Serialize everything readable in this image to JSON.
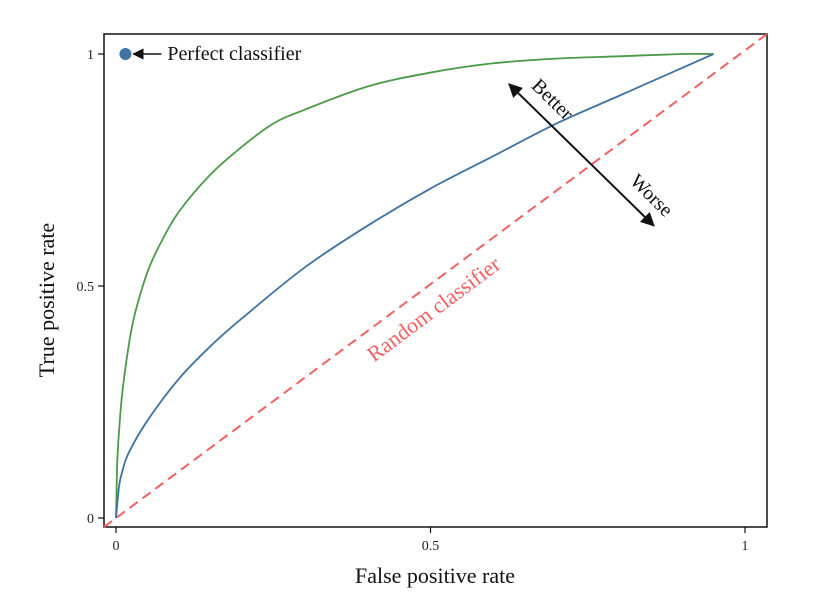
{
  "chart_data": {
    "type": "line",
    "xlabel": "False positive rate",
    "ylabel": "True positive rate",
    "xlim": [
      0,
      1
    ],
    "ylim": [
      0,
      1
    ],
    "x_ticks": [
      0,
      0.5,
      1
    ],
    "x_tick_labels": [
      "0",
      "0.5",
      "1"
    ],
    "y_ticks": [
      0,
      0.5,
      1
    ],
    "y_tick_labels": [
      "0",
      "0.5",
      "1"
    ],
    "grid": false,
    "series": [
      {
        "color": "#4a9a47",
        "x": [
          0,
          0.002,
          0.005,
          0.01,
          0.02,
          0.03,
          0.05,
          0.07,
          0.1,
          0.15,
          0.2,
          0.25,
          0.3,
          0.4,
          0.5,
          0.6,
          0.7,
          0.8,
          0.9,
          0.95
        ],
        "y": [
          0.0,
          0.12,
          0.19,
          0.27,
          0.37,
          0.44,
          0.53,
          0.59,
          0.66,
          0.74,
          0.8,
          0.85,
          0.88,
          0.93,
          0.96,
          0.98,
          0.99,
          0.995,
          1.0,
          1.0
        ]
      },
      {
        "color": "#3e73a4",
        "x": [
          0,
          0.005,
          0.01,
          0.02,
          0.05,
          0.1,
          0.15,
          0.2,
          0.3,
          0.4,
          0.5,
          0.6,
          0.7,
          0.8,
          0.9,
          0.95
        ],
        "y": [
          0.0,
          0.07,
          0.1,
          0.14,
          0.21,
          0.3,
          0.37,
          0.43,
          0.54,
          0.63,
          0.71,
          0.78,
          0.85,
          0.91,
          0.97,
          1.0
        ]
      }
    ],
    "random_classifier": {
      "label": "Random classifier",
      "color": "#f26060",
      "x": [
        0,
        1
      ],
      "y": [
        0,
        1
      ]
    },
    "perfect_point": {
      "x": 0.015,
      "y": 1.0,
      "label": "Perfect classifier",
      "color": "#3e73a4"
    },
    "better_worse": {
      "better_label": "Better",
      "worse_label": "Worse",
      "from": [
        0.855,
        0.63
      ],
      "to": [
        0.625,
        0.935
      ]
    }
  }
}
